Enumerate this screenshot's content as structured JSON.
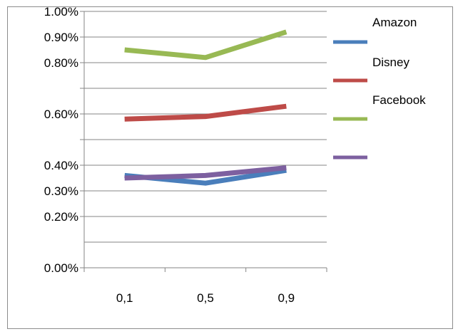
{
  "chart_data": {
    "type": "line",
    "categories": [
      "0,1",
      "0,5",
      "0,9"
    ],
    "y_ticks": [
      {
        "value": 0.0,
        "label": "0.00%"
      },
      {
        "value": 0.002,
        "label": "0.20%"
      },
      {
        "value": 0.003,
        "label": "0.30%"
      },
      {
        "value": 0.004,
        "label": "0.40%"
      },
      {
        "value": 0.005,
        "label": ""
      },
      {
        "value": 0.006,
        "label": "0.60%"
      },
      {
        "value": 0.007,
        "label": ""
      },
      {
        "value": 0.008,
        "label": "0.80%"
      },
      {
        "value": 0.009,
        "label": "0.90%"
      },
      {
        "value": 0.01,
        "label": "1.00%"
      }
    ],
    "extra_gridlines": [
      0.001
    ],
    "ylim": [
      0,
      0.01
    ],
    "grid": true,
    "legend_position": "right",
    "series": [
      {
        "name": "Amazon",
        "color": "#4a7ebb",
        "values": [
          0.0036,
          0.0033,
          0.0038
        ]
      },
      {
        "name": "Disney",
        "color": "#be4b48",
        "values": [
          0.0058,
          0.0059,
          0.0063
        ]
      },
      {
        "name": "Facebook",
        "color": "#98b954",
        "values": [
          0.0085,
          0.0082,
          0.0092
        ]
      },
      {
        "name": "",
        "color": "#7d60a0",
        "values": [
          0.0035,
          0.0036,
          0.0039
        ]
      }
    ]
  }
}
